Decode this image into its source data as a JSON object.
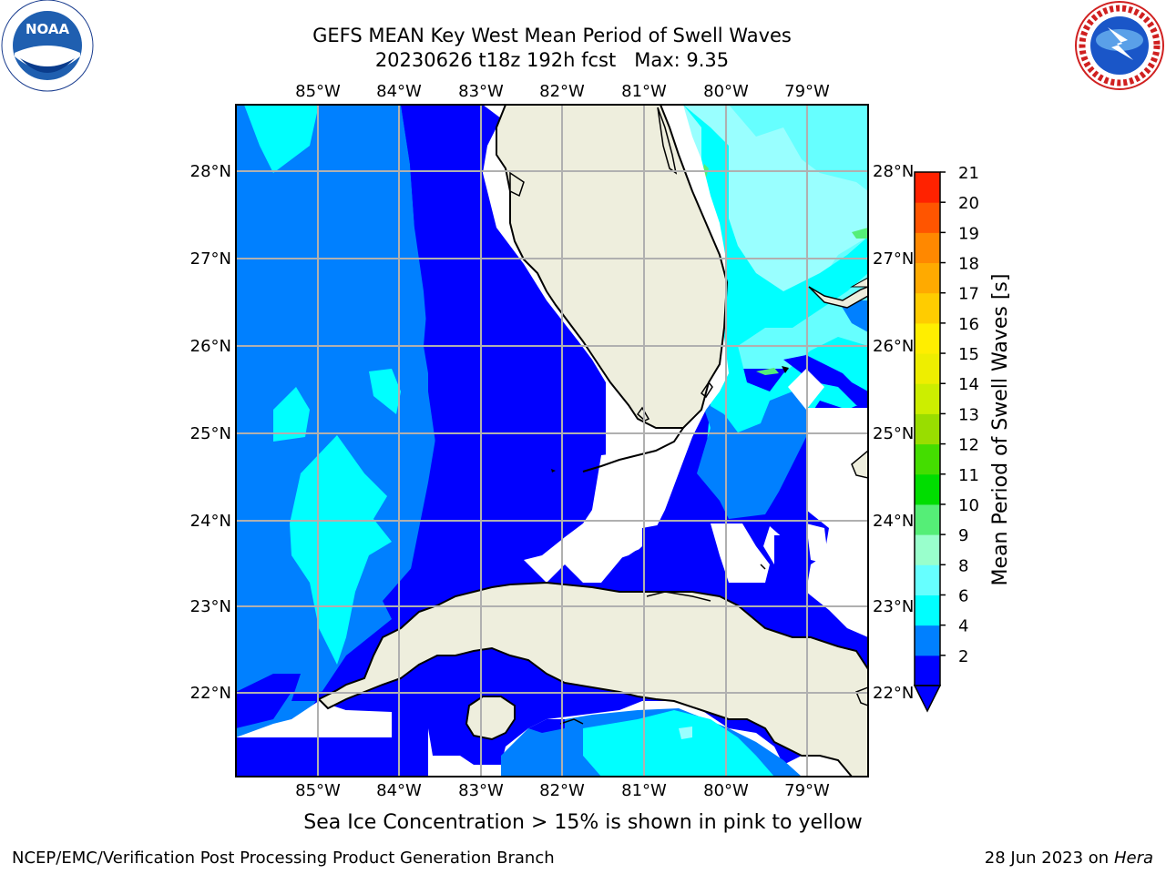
{
  "header": {
    "title_line1": "GEFS MEAN Key West Mean Period of Swell Waves",
    "title_line2": "20230626 t18z 192h fcst   Max: 9.35"
  },
  "logos": {
    "noaa_text": "NOAA",
    "noaa_ring_text": "NATIONAL OCEANIC AND ATMOSPHERIC ADMINISTRATION · U.S. DEPARTMENT OF COMMERCE",
    "nws_ring_text": "NATIONAL WEATHER SERVICE"
  },
  "map": {
    "lon_labels": [
      "85°W",
      "84°W",
      "83°W",
      "82°W",
      "81°W",
      "80°W",
      "79°W"
    ],
    "lat_labels": [
      "28°N",
      "27°N",
      "26°N",
      "25°N",
      "24°N",
      "23°N",
      "22°N"
    ],
    "land_color": "#eeeedd",
    "grid_color": "#b0b0b0"
  },
  "colorbar": {
    "label": "Mean Period of Swell Waves [s]",
    "ticks": [
      "21",
      "20",
      "19",
      "18",
      "17",
      "16",
      "15",
      "14",
      "13",
      "12",
      "11",
      "10",
      "9",
      "8",
      "6",
      "4",
      "2"
    ],
    "colors": [
      "#0000ff",
      "#0080ff",
      "#00ffff",
      "#66ffff",
      "#99ffcc",
      "#55ee77",
      "#00dd00",
      "#44dd00",
      "#99dd00",
      "#ccee00",
      "#eeee00",
      "#ffee00",
      "#ffcc00",
      "#ffaa00",
      "#ff8800",
      "#ff5500",
      "#ff2200",
      "#ff0000"
    ]
  },
  "note": "Sea Ice Concentration > 15% is shown in pink to yellow",
  "footer": {
    "left": "NCEP/EMC/Verification Post Processing Product Generation Branch",
    "date": "28 Jun 2023 on",
    "machine": "Hera"
  }
}
